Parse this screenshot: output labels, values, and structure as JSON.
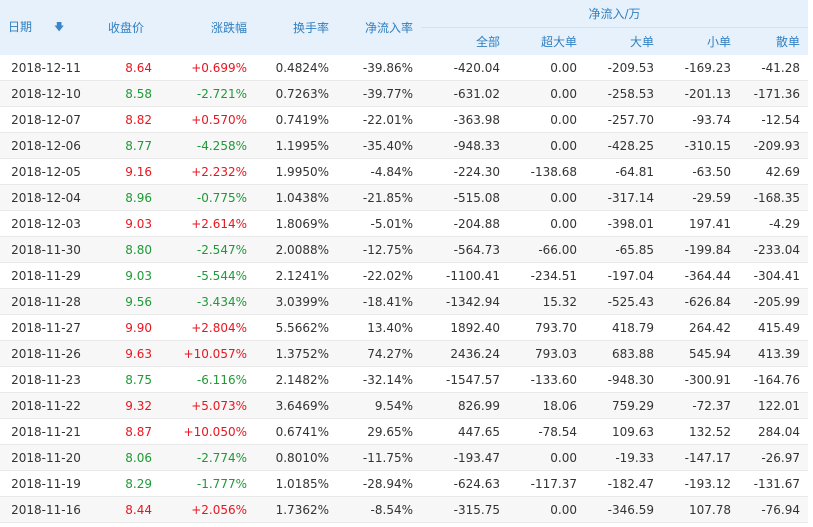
{
  "headers": {
    "date": "日期",
    "close": "收盘价",
    "change": "涨跌幅",
    "turnover": "换手率",
    "net_rate": "净流入率",
    "net_flow_group": "净流入/万",
    "total": "全部",
    "super_large": "超大单",
    "large": "大单",
    "small": "小单",
    "retail": "散单"
  },
  "sort_icon": "arrow-down-icon",
  "colors": {
    "up": "#e8161f",
    "down": "#1e9a36",
    "header_bg": "#e7f1fb",
    "header_text": "#2f7fc1"
  },
  "rows": [
    {
      "date": "2018-12-11",
      "close": "8.64",
      "change": "+0.699%",
      "turnover": "0.4824%",
      "net_rate": "-39.86%",
      "total": "-420.04",
      "super_large": "0.00",
      "large": "-209.53",
      "small": "-169.23",
      "retail": "-41.28",
      "dir": "up"
    },
    {
      "date": "2018-12-10",
      "close": "8.58",
      "change": "-2.721%",
      "turnover": "0.7263%",
      "net_rate": "-39.77%",
      "total": "-631.02",
      "super_large": "0.00",
      "large": "-258.53",
      "small": "-201.13",
      "retail": "-171.36",
      "dir": "down"
    },
    {
      "date": "2018-12-07",
      "close": "8.82",
      "change": "+0.570%",
      "turnover": "0.7419%",
      "net_rate": "-22.01%",
      "total": "-363.98",
      "super_large": "0.00",
      "large": "-257.70",
      "small": "-93.74",
      "retail": "-12.54",
      "dir": "up"
    },
    {
      "date": "2018-12-06",
      "close": "8.77",
      "change": "-4.258%",
      "turnover": "1.1995%",
      "net_rate": "-35.40%",
      "total": "-948.33",
      "super_large": "0.00",
      "large": "-428.25",
      "small": "-310.15",
      "retail": "-209.93",
      "dir": "down"
    },
    {
      "date": "2018-12-05",
      "close": "9.16",
      "change": "+2.232%",
      "turnover": "1.9950%",
      "net_rate": "-4.84%",
      "total": "-224.30",
      "super_large": "-138.68",
      "large": "-64.81",
      "small": "-63.50",
      "retail": "42.69",
      "dir": "up"
    },
    {
      "date": "2018-12-04",
      "close": "8.96",
      "change": "-0.775%",
      "turnover": "1.0438%",
      "net_rate": "-21.85%",
      "total": "-515.08",
      "super_large": "0.00",
      "large": "-317.14",
      "small": "-29.59",
      "retail": "-168.35",
      "dir": "down"
    },
    {
      "date": "2018-12-03",
      "close": "9.03",
      "change": "+2.614%",
      "turnover": "1.8069%",
      "net_rate": "-5.01%",
      "total": "-204.88",
      "super_large": "0.00",
      "large": "-398.01",
      "small": "197.41",
      "retail": "-4.29",
      "dir": "up"
    },
    {
      "date": "2018-11-30",
      "close": "8.80",
      "change": "-2.547%",
      "turnover": "2.0088%",
      "net_rate": "-12.75%",
      "total": "-564.73",
      "super_large": "-66.00",
      "large": "-65.85",
      "small": "-199.84",
      "retail": "-233.04",
      "dir": "down"
    },
    {
      "date": "2018-11-29",
      "close": "9.03",
      "change": "-5.544%",
      "turnover": "2.1241%",
      "net_rate": "-22.02%",
      "total": "-1100.41",
      "super_large": "-234.51",
      "large": "-197.04",
      "small": "-364.44",
      "retail": "-304.41",
      "dir": "down"
    },
    {
      "date": "2018-11-28",
      "close": "9.56",
      "change": "-3.434%",
      "turnover": "3.0399%",
      "net_rate": "-18.41%",
      "total": "-1342.94",
      "super_large": "15.32",
      "large": "-525.43",
      "small": "-626.84",
      "retail": "-205.99",
      "dir": "down"
    },
    {
      "date": "2018-11-27",
      "close": "9.90",
      "change": "+2.804%",
      "turnover": "5.5662%",
      "net_rate": "13.40%",
      "total": "1892.40",
      "super_large": "793.70",
      "large": "418.79",
      "small": "264.42",
      "retail": "415.49",
      "dir": "up"
    },
    {
      "date": "2018-11-26",
      "close": "9.63",
      "change": "+10.057%",
      "turnover": "1.3752%",
      "net_rate": "74.27%",
      "total": "2436.24",
      "super_large": "793.03",
      "large": "683.88",
      "small": "545.94",
      "retail": "413.39",
      "dir": "up"
    },
    {
      "date": "2018-11-23",
      "close": "8.75",
      "change": "-6.116%",
      "turnover": "2.1482%",
      "net_rate": "-32.14%",
      "total": "-1547.57",
      "super_large": "-133.60",
      "large": "-948.30",
      "small": "-300.91",
      "retail": "-164.76",
      "dir": "down"
    },
    {
      "date": "2018-11-22",
      "close": "9.32",
      "change": "+5.073%",
      "turnover": "3.6469%",
      "net_rate": "9.54%",
      "total": "826.99",
      "super_large": "18.06",
      "large": "759.29",
      "small": "-72.37",
      "retail": "122.01",
      "dir": "up"
    },
    {
      "date": "2018-11-21",
      "close": "8.87",
      "change": "+10.050%",
      "turnover": "0.6741%",
      "net_rate": "29.65%",
      "total": "447.65",
      "super_large": "-78.54",
      "large": "109.63",
      "small": "132.52",
      "retail": "284.04",
      "dir": "up"
    },
    {
      "date": "2018-11-20",
      "close": "8.06",
      "change": "-2.774%",
      "turnover": "0.8010%",
      "net_rate": "-11.75%",
      "total": "-193.47",
      "super_large": "0.00",
      "large": "-19.33",
      "small": "-147.17",
      "retail": "-26.97",
      "dir": "down"
    },
    {
      "date": "2018-11-19",
      "close": "8.29",
      "change": "-1.777%",
      "turnover": "1.0185%",
      "net_rate": "-28.94%",
      "total": "-624.63",
      "super_large": "-117.37",
      "large": "-182.47",
      "small": "-193.12",
      "retail": "-131.67",
      "dir": "down"
    },
    {
      "date": "2018-11-16",
      "close": "8.44",
      "change": "+2.056%",
      "turnover": "1.7362%",
      "net_rate": "-8.54%",
      "total": "-315.75",
      "super_large": "0.00",
      "large": "-346.59",
      "small": "107.78",
      "retail": "-76.94",
      "dir": "up"
    }
  ]
}
